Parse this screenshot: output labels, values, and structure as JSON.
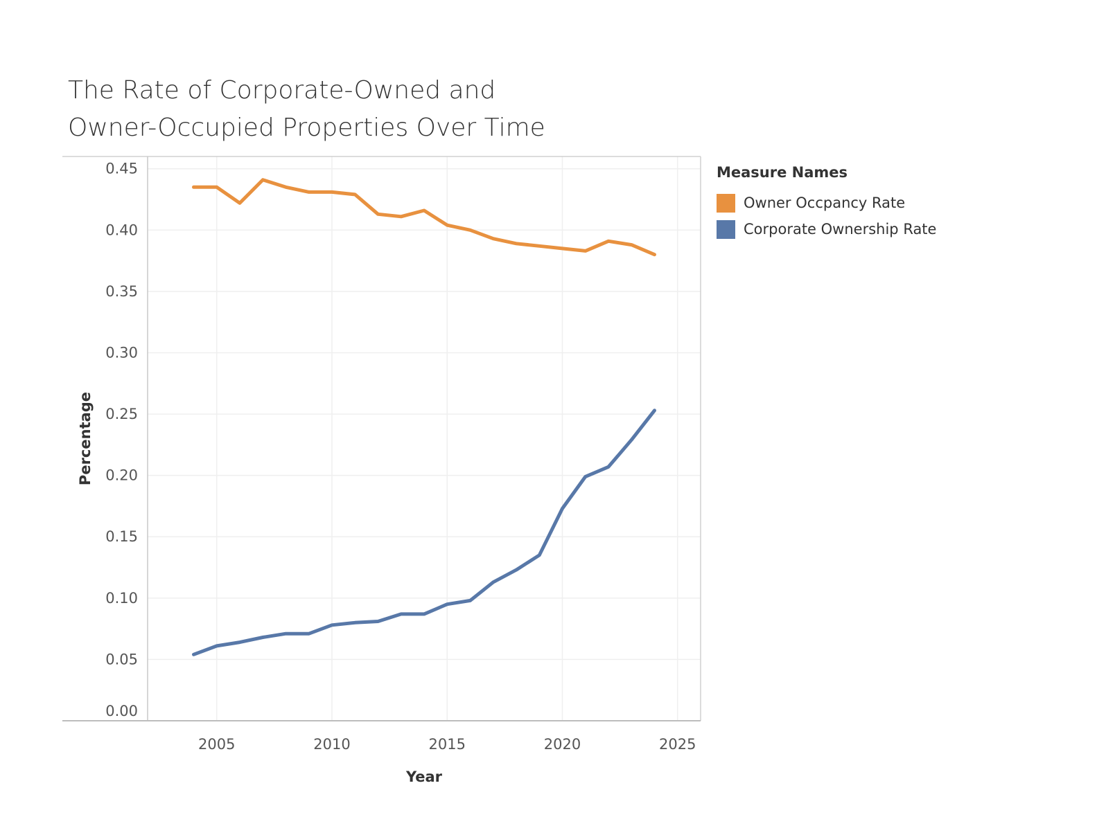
{
  "chart_data": {
    "type": "line",
    "title": [
      "The Rate of Corporate-Owned and",
      "Owner-Occupied Properties Over Time"
    ],
    "xlabel": "Year",
    "ylabel": "Percentage",
    "xlim": [
      2002,
      2026
    ],
    "ylim": [
      0,
      0.46
    ],
    "x_ticks": [
      2005,
      2010,
      2015,
      2020,
      2025
    ],
    "x_tick_labels": [
      "2005",
      "2010",
      "2015",
      "2020",
      "2025"
    ],
    "y_ticks": [
      0.0,
      0.05,
      0.1,
      0.15,
      0.2,
      0.25,
      0.3,
      0.35,
      0.4,
      0.45
    ],
    "y_tick_labels": [
      "0.00",
      "0.05",
      "0.10",
      "0.15",
      "0.20",
      "0.25",
      "0.30",
      "0.35",
      "0.40",
      "0.45"
    ],
    "grid": true,
    "legend": {
      "title": "Measure Names",
      "placement": "right"
    },
    "x": [
      2004,
      2005,
      2006,
      2007,
      2008,
      2009,
      2010,
      2011,
      2012,
      2013,
      2014,
      2015,
      2016,
      2017,
      2018,
      2019,
      2020,
      2021,
      2022,
      2023,
      2024
    ],
    "series": [
      {
        "name": "Owner Occpancy Rate",
        "color": "#E8913F",
        "values": [
          0.435,
          0.435,
          0.422,
          0.441,
          0.435,
          0.431,
          0.431,
          0.429,
          0.413,
          0.411,
          0.416,
          0.404,
          0.4,
          0.393,
          0.389,
          0.387,
          0.385,
          0.383,
          0.391,
          0.388,
          0.38
        ]
      },
      {
        "name": "Corporate Ownership Rate",
        "color": "#5878A8",
        "values": [
          0.054,
          0.061,
          0.064,
          0.068,
          0.071,
          0.071,
          0.078,
          0.08,
          0.081,
          0.087,
          0.087,
          0.095,
          0.098,
          0.113,
          0.123,
          0.135,
          0.173,
          0.199,
          0.207,
          0.229,
          0.253
        ]
      }
    ]
  }
}
